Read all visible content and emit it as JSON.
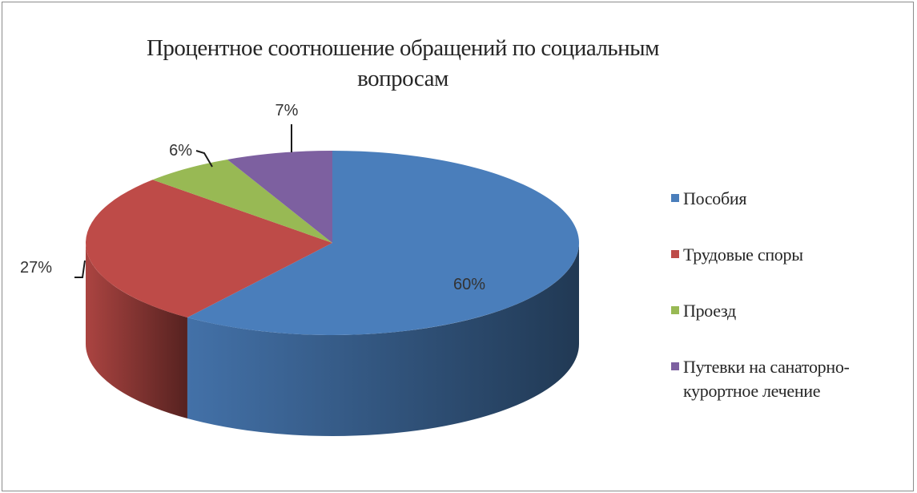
{
  "chart_data": {
    "type": "pie",
    "title": "Процентное соотношение обращений по социальным вопросам",
    "categories": [
      "Пособия",
      "Трудовые споры",
      "Проезд",
      "Путевки на санаторно-курортное лечение"
    ],
    "values": [
      60,
      27,
      6,
      7
    ],
    "value_labels": [
      "60%",
      "27%",
      "6%",
      "7%"
    ],
    "colors": [
      "#4a7ebb",
      "#be4b48",
      "#98b954",
      "#7d60a0"
    ],
    "legend_position": "right",
    "style": "3d"
  }
}
